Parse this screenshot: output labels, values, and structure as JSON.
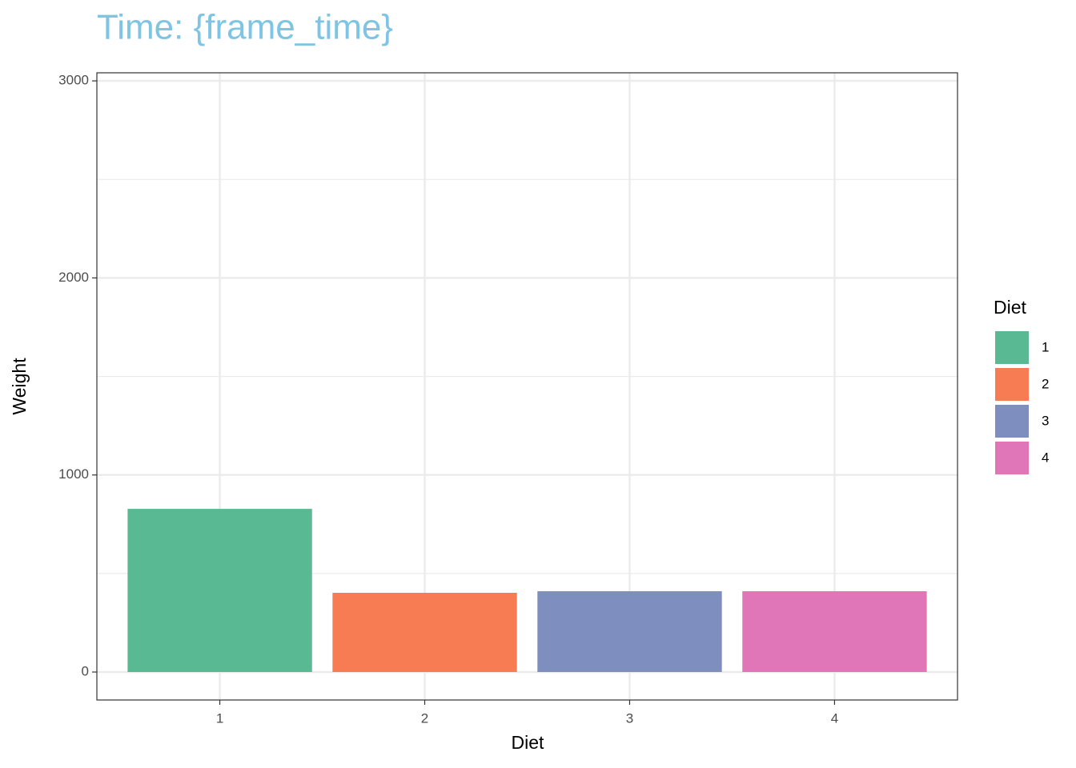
{
  "chart_data": {
    "type": "bar",
    "title": "Time: {frame_time}",
    "title_color": "#7ec4e4",
    "x_label": "Diet",
    "y_label": "Weight",
    "legend_title": "Diet",
    "categories": [
      "1",
      "2",
      "3",
      "4"
    ],
    "values": [
      828,
      402,
      410,
      410
    ],
    "colors": [
      "#58b993",
      "#f77c53",
      "#7e8ebf",
      "#e075b7"
    ],
    "ylim": [
      -142,
      3041
    ],
    "yticks": [
      0,
      1000,
      2000,
      3000
    ],
    "minor_yticks": [
      500,
      1500,
      2500
    ],
    "grid": true,
    "legend": "right"
  }
}
